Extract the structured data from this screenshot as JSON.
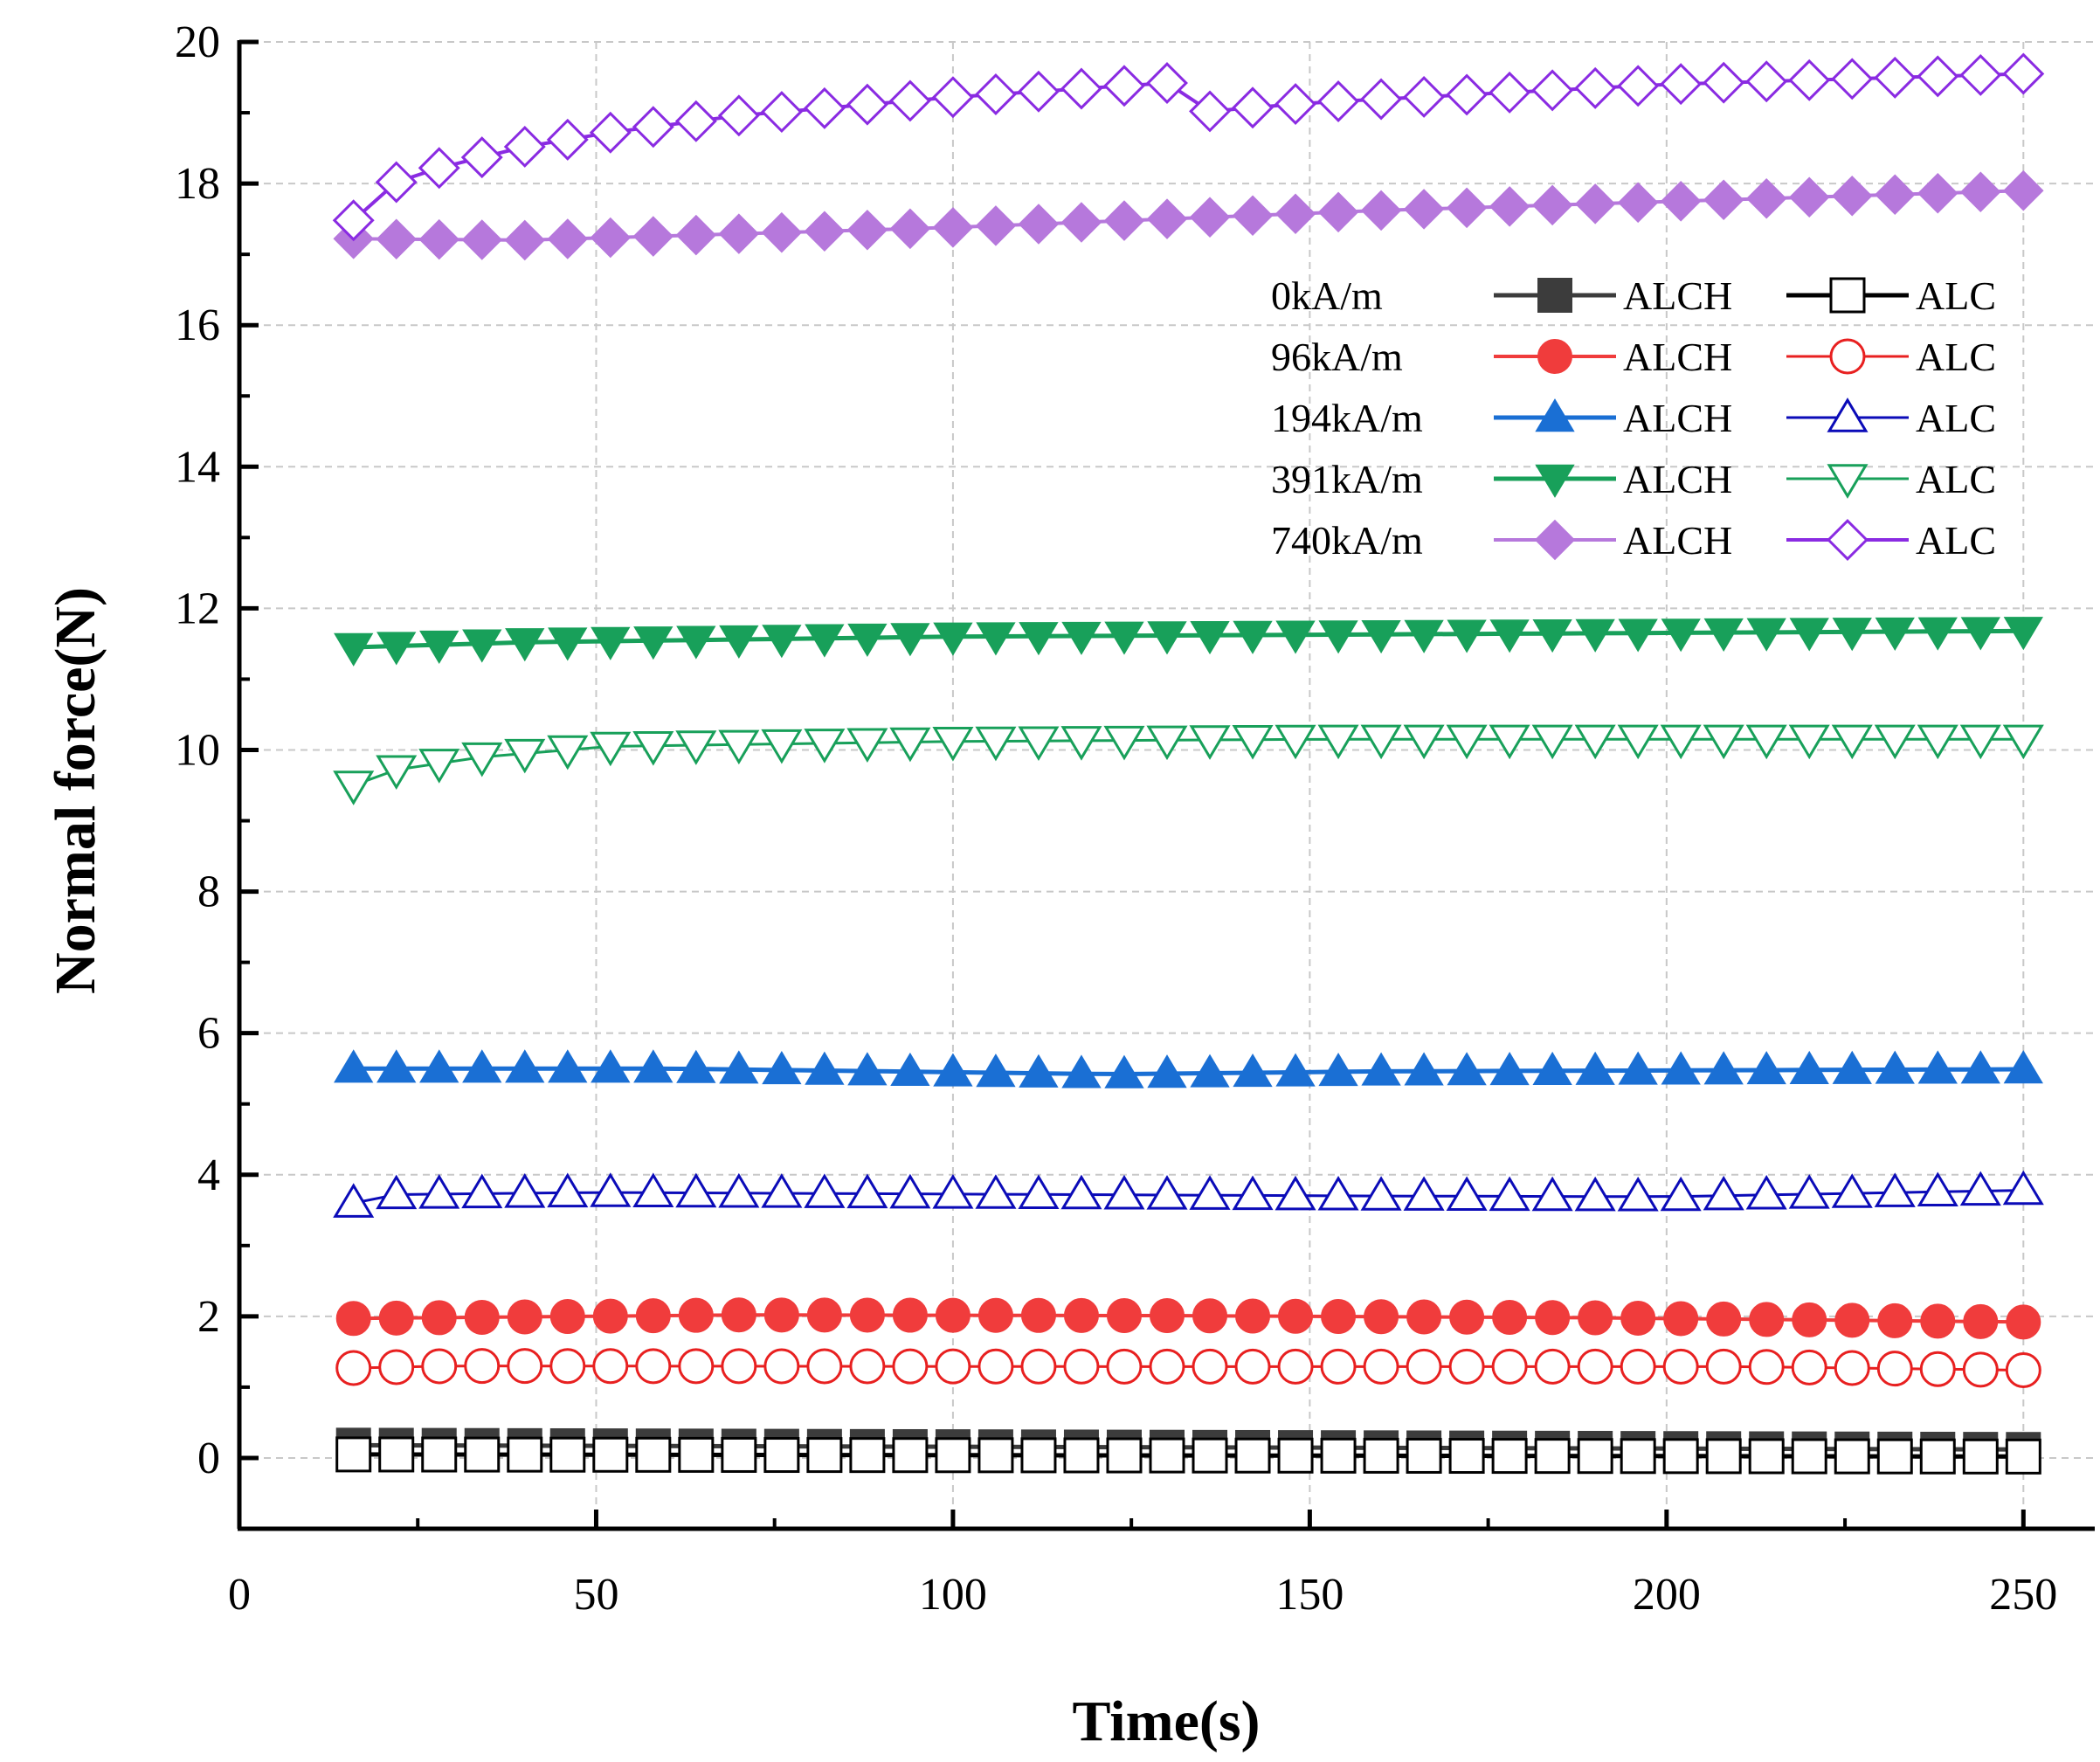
{
  "chart_data": {
    "type": "line",
    "xlabel": "Time(s)",
    "ylabel": "Normal force(N)",
    "xlim": [
      0,
      260
    ],
    "ylim": [
      -1,
      20
    ],
    "xticks": [
      0,
      50,
      100,
      150,
      200,
      250
    ],
    "yticks": [
      0,
      2,
      4,
      6,
      8,
      10,
      12,
      14,
      16,
      18,
      20
    ],
    "grid": true,
    "legend_position": "top-right",
    "legend_columns": [
      "ALCH",
      "ALC"
    ],
    "x_points": {
      "start": 16,
      "end": 250,
      "step": 6
    },
    "series": [
      {
        "name": "ALCH",
        "group": "0kA/m",
        "color": "#3c3c3c",
        "marker": "square",
        "filled": true,
        "line_width": 5,
        "anchors": [
          [
            16,
            0.18
          ],
          [
            250,
            0.12
          ]
        ]
      },
      {
        "name": "ALC",
        "group": "0kA/m",
        "color": "#000000",
        "marker": "square",
        "filled": false,
        "line_width": 5,
        "anchors": [
          [
            16,
            0.05
          ],
          [
            250,
            0.02
          ]
        ]
      },
      {
        "name": "ALCH",
        "group": "96kA/m",
        "color": "#f03c3c",
        "marker": "circle",
        "filled": true,
        "line_width": 4,
        "anchors": [
          [
            16,
            1.97
          ],
          [
            70,
            2.02
          ],
          [
            130,
            2.01
          ],
          [
            190,
            1.98
          ],
          [
            250,
            1.92
          ]
        ]
      },
      {
        "name": "ALC",
        "group": "96kA/m",
        "color": "#e82020",
        "marker": "circle",
        "filled": false,
        "line_width": 3,
        "anchors": [
          [
            16,
            1.27
          ],
          [
            30,
            1.3
          ],
          [
            130,
            1.29
          ],
          [
            210,
            1.29
          ],
          [
            250,
            1.24
          ]
        ]
      },
      {
        "name": "ALCH",
        "group": "194kA/m",
        "color": "#1a6fd4",
        "marker": "triangle-up",
        "filled": true,
        "line_width": 5,
        "anchors": [
          [
            16,
            5.5
          ],
          [
            60,
            5.5
          ],
          [
            122,
            5.42
          ],
          [
            160,
            5.46
          ],
          [
            250,
            5.49
          ]
        ]
      },
      {
        "name": "ALC",
        "group": "194kA/m",
        "color": "#0b0bb8",
        "marker": "triangle-up",
        "filled": false,
        "line_width": 3,
        "anchors": [
          [
            16,
            3.6
          ],
          [
            22,
            3.72
          ],
          [
            50,
            3.75
          ],
          [
            160,
            3.7
          ],
          [
            200,
            3.69
          ],
          [
            250,
            3.78
          ]
        ]
      },
      {
        "name": "ALCH",
        "group": "391kA/m",
        "color": "#18a05a",
        "marker": "triangle-down",
        "filled": true,
        "line_width": 5,
        "anchors": [
          [
            16,
            11.45
          ],
          [
            40,
            11.52
          ],
          [
            100,
            11.6
          ],
          [
            250,
            11.68
          ]
        ]
      },
      {
        "name": "ALC",
        "group": "391kA/m",
        "color": "#18a05a",
        "marker": "triangle-down",
        "filled": false,
        "line_width": 3,
        "anchors": [
          [
            16,
            9.5
          ],
          [
            22,
            9.72
          ],
          [
            34,
            9.9
          ],
          [
            52,
            10.05
          ],
          [
            100,
            10.12
          ],
          [
            150,
            10.15
          ],
          [
            250,
            10.15
          ]
        ]
      },
      {
        "name": "ALCH",
        "group": "740kA/m",
        "color": "#b678dc",
        "marker": "diamond",
        "filled": true,
        "line_width": 4,
        "anchors": [
          [
            16,
            17.22
          ],
          [
            40,
            17.2
          ],
          [
            100,
            17.38
          ],
          [
            160,
            17.62
          ],
          [
            250,
            17.9
          ]
        ]
      },
      {
        "name": "ALC",
        "group": "740kA/m",
        "color": "#8a2be2",
        "marker": "diamond",
        "filled": false,
        "line_width": 4,
        "anchors": [
          [
            16,
            17.48
          ],
          [
            22,
            18.02
          ],
          [
            28,
            18.22
          ],
          [
            40,
            18.52
          ],
          [
            52,
            18.72
          ],
          [
            70,
            18.96
          ],
          [
            100,
            19.22
          ],
          [
            130,
            19.42
          ],
          [
            136,
            19.02
          ],
          [
            150,
            19.14
          ],
          [
            200,
            19.4
          ],
          [
            250,
            19.55
          ]
        ]
      }
    ],
    "legend_rows": [
      {
        "label": "0kA/m",
        "series": [
          0,
          1
        ]
      },
      {
        "label": "96kA/m",
        "series": [
          2,
          3
        ]
      },
      {
        "label": "194kA/m",
        "series": [
          4,
          5
        ]
      },
      {
        "label": "391kA/m",
        "series": [
          6,
          7
        ]
      },
      {
        "label": "740kA/m",
        "series": [
          8,
          9
        ]
      }
    ]
  }
}
